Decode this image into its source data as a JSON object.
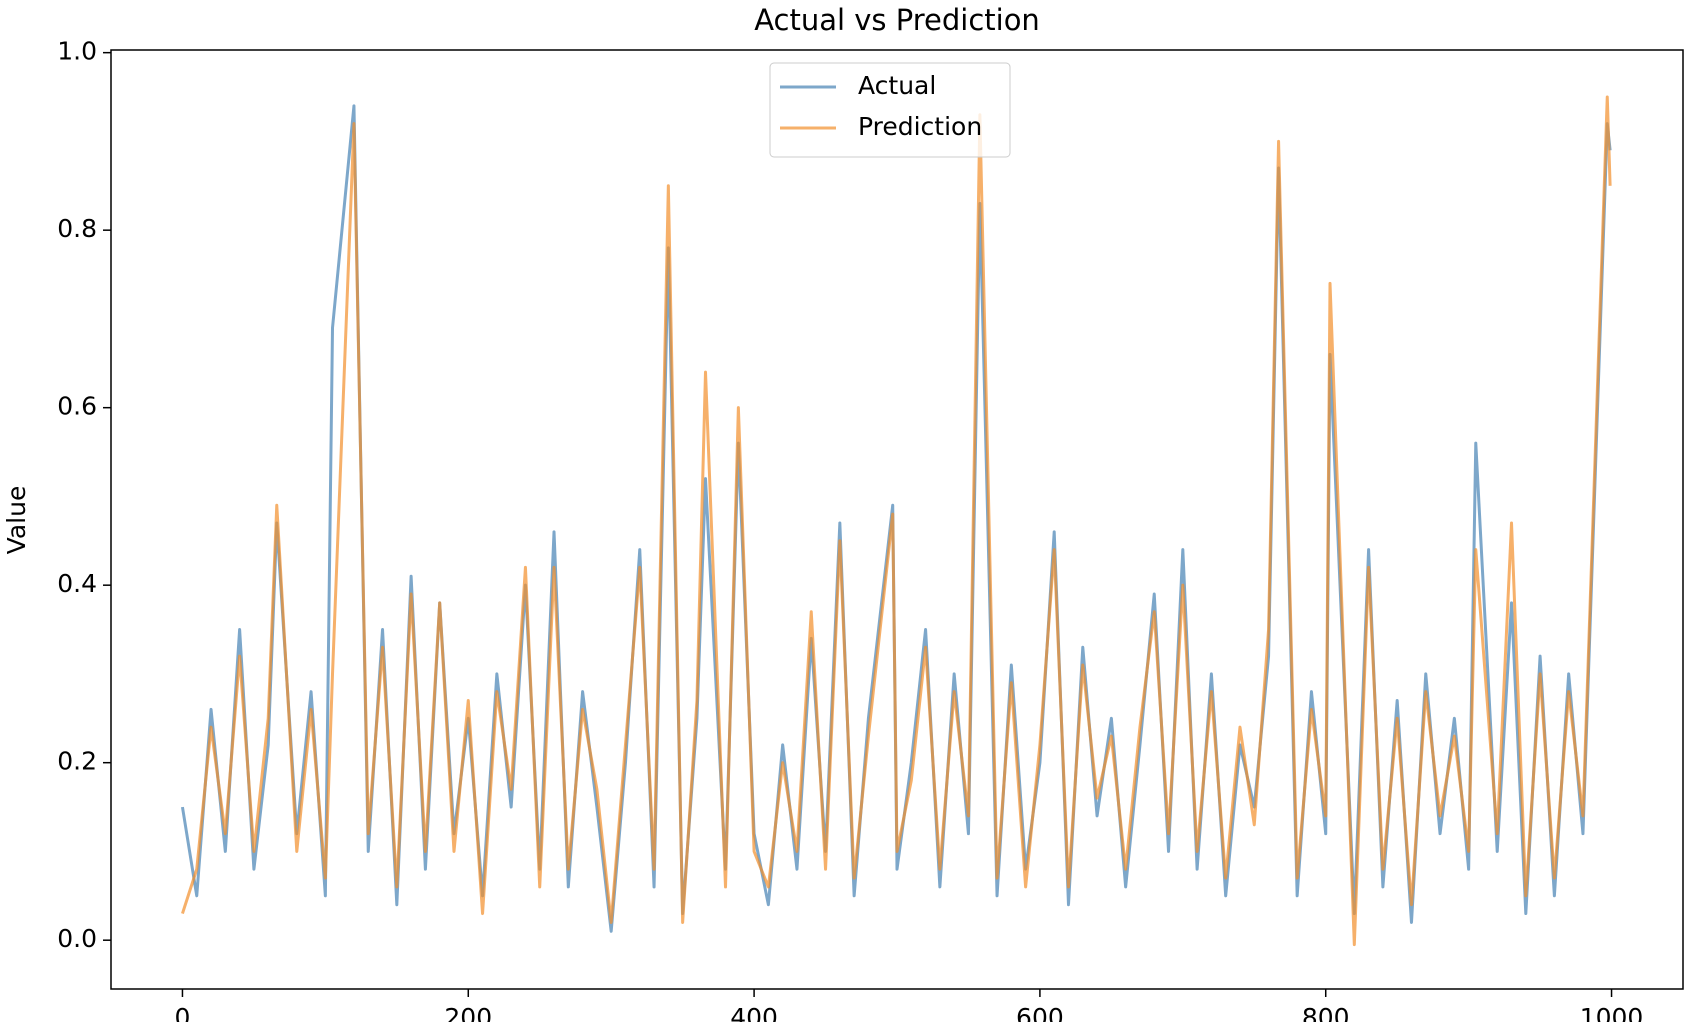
{
  "chart_data": {
    "type": "line",
    "title": "Actual vs Prediction",
    "y_label": "Value",
    "x": [
      0,
      10,
      20,
      30,
      40,
      50,
      60,
      66,
      80,
      90,
      100,
      105,
      120,
      130,
      140,
      150,
      160,
      170,
      180,
      190,
      200,
      210,
      220,
      230,
      240,
      250,
      260,
      270,
      280,
      290,
      300,
      310,
      320,
      330,
      340,
      350,
      360,
      366,
      380,
      389,
      400,
      410,
      420,
      430,
      440,
      450,
      460,
      470,
      480,
      497,
      500,
      510,
      520,
      530,
      540,
      550,
      558,
      570,
      580,
      590,
      600,
      610,
      620,
      630,
      640,
      650,
      660,
      670,
      680,
      690,
      700,
      710,
      720,
      730,
      740,
      750,
      760,
      767,
      780,
      790,
      800,
      803,
      820,
      830,
      840,
      850,
      860,
      870,
      880,
      890,
      900,
      905,
      920,
      930,
      940,
      950,
      960,
      970,
      980,
      997,
      999
    ],
    "series": [
      {
        "name": "Actual",
        "color": "#4682b4",
        "values": [
          0.15,
          0.05,
          0.26,
          0.1,
          0.35,
          0.08,
          0.22,
          0.47,
          0.12,
          0.28,
          0.05,
          0.69,
          0.94,
          0.1,
          0.35,
          0.04,
          0.41,
          0.08,
          0.38,
          0.12,
          0.25,
          0.05,
          0.3,
          0.15,
          0.4,
          0.08,
          0.46,
          0.06,
          0.28,
          0.15,
          0.01,
          0.2,
          0.44,
          0.06,
          0.78,
          0.03,
          0.25,
          0.52,
          0.08,
          0.56,
          0.12,
          0.04,
          0.22,
          0.08,
          0.34,
          0.1,
          0.47,
          0.05,
          0.25,
          0.49,
          0.08,
          0.2,
          0.35,
          0.06,
          0.3,
          0.12,
          0.83,
          0.05,
          0.31,
          0.08,
          0.2,
          0.46,
          0.04,
          0.33,
          0.14,
          0.25,
          0.06,
          0.22,
          0.39,
          0.1,
          0.44,
          0.08,
          0.3,
          0.05,
          0.22,
          0.15,
          0.32,
          0.87,
          0.05,
          0.28,
          0.12,
          0.66,
          0.03,
          0.44,
          0.06,
          0.27,
          0.02,
          0.3,
          0.12,
          0.25,
          0.08,
          0.56,
          0.1,
          0.38,
          0.03,
          0.32,
          0.05,
          0.3,
          0.12,
          0.92,
          0.89
        ]
      },
      {
        "name": "Prediction",
        "color": "#f28e2b",
        "values": [
          0.03,
          0.08,
          0.24,
          0.12,
          0.32,
          0.1,
          0.25,
          0.49,
          0.1,
          0.26,
          0.07,
          0.3,
          0.92,
          0.12,
          0.33,
          0.06,
          0.39,
          0.1,
          0.38,
          0.1,
          0.27,
          0.03,
          0.28,
          0.17,
          0.42,
          0.06,
          0.42,
          0.08,
          0.26,
          0.17,
          0.02,
          0.22,
          0.42,
          0.08,
          0.85,
          0.02,
          0.27,
          0.64,
          0.06,
          0.6,
          0.1,
          0.06,
          0.2,
          0.1,
          0.37,
          0.08,
          0.45,
          0.07,
          0.23,
          0.48,
          0.1,
          0.18,
          0.33,
          0.08,
          0.28,
          0.14,
          0.93,
          0.07,
          0.29,
          0.06,
          0.22,
          0.44,
          0.06,
          0.31,
          0.16,
          0.23,
          0.08,
          0.24,
          0.37,
          0.12,
          0.4,
          0.1,
          0.28,
          0.07,
          0.24,
          0.13,
          0.35,
          0.9,
          0.07,
          0.26,
          0.14,
          0.74,
          -0.005,
          0.42,
          0.08,
          0.25,
          0.04,
          0.28,
          0.14,
          0.23,
          0.1,
          0.44,
          0.12,
          0.47,
          0.05,
          0.3,
          0.07,
          0.28,
          0.14,
          0.95,
          0.85
        ]
      }
    ],
    "xlim": [
      -50,
      1050
    ],
    "xticks": [
      0,
      200,
      400,
      600,
      800,
      1000
    ],
    "ylim": [
      -0.055,
      1.003
    ],
    "yticks": [
      {
        "value": 0,
        "label": "0.0"
      },
      {
        "value": 0.2,
        "label": "0.2"
      },
      {
        "value": 0.4,
        "label": "0.4"
      },
      {
        "value": 0.6,
        "label": "0.6"
      },
      {
        "value": 0.8,
        "label": "0.8"
      },
      {
        "value": 1,
        "label": "1.0"
      }
    ],
    "legend": "upper center",
    "opacity": 0.7
  }
}
